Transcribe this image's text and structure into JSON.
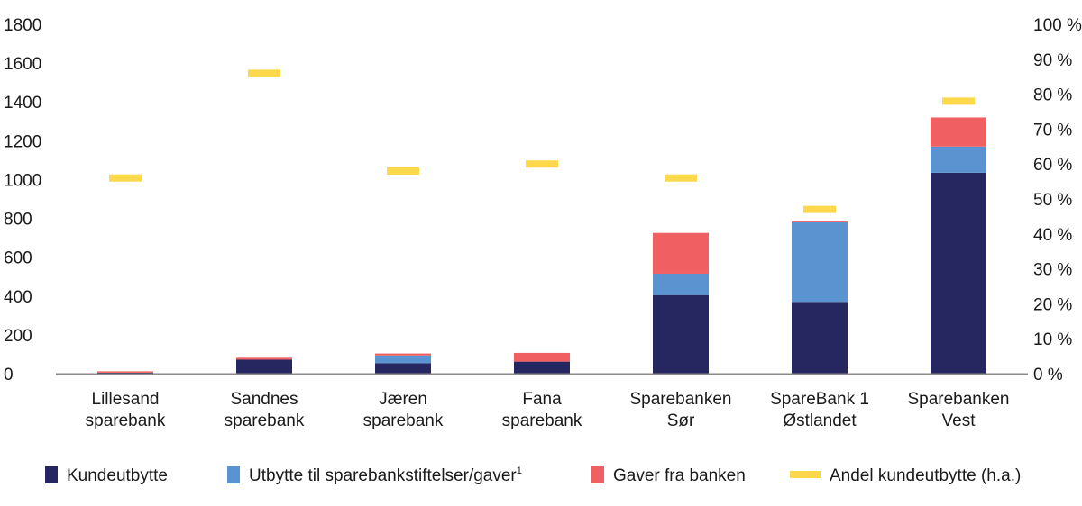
{
  "chart_data": {
    "type": "bar",
    "stacked": true,
    "categories": [
      [
        "Lillesand",
        "sparebank"
      ],
      [
        "Sandnes",
        "sparebank"
      ],
      [
        "Jæren",
        "sparebank"
      ],
      [
        "Fana",
        "sparebank"
      ],
      [
        "Sparebanken",
        "Sør"
      ],
      [
        "SpareBank 1",
        "Østlandet"
      ],
      [
        "Sparebanken",
        "Vest"
      ]
    ],
    "series": [
      {
        "name": "Kundeutbytte",
        "color": "#262660",
        "values": [
          5,
          72,
          54,
          62,
          405,
          370,
          1035
        ]
      },
      {
        "name": "Utbytte til sparebankstiftelser/gaver",
        "name_superscript": "1",
        "color": "#5a93cf",
        "values": [
          0,
          0,
          40,
          0,
          110,
          410,
          135
        ]
      },
      {
        "name": "Gaver fra banken",
        "color": "#f06062",
        "values": [
          7,
          10,
          10,
          45,
          210,
          5,
          150
        ]
      }
    ],
    "line_series": {
      "name": "Andel kundeutbytte (h.a.)",
      "color": "#fcd84a",
      "axis": "right",
      "marker": "dash",
      "values": [
        56,
        86,
        58,
        60,
        56,
        47,
        78
      ]
    },
    "ylim": [
      0,
      1800
    ],
    "yticks": [
      "0",
      "200",
      "400",
      "600",
      "800",
      "1000",
      "1200",
      "1400",
      "1600",
      "1800"
    ],
    "y2lim": [
      0,
      100
    ],
    "y2ticks": [
      "0 %",
      "10 %",
      "20 %",
      "30 %",
      "40 %",
      "50 %",
      "60 %",
      "70 %",
      "80 %",
      "90 %",
      "100 %"
    ],
    "grid": false,
    "legend": "bottom"
  }
}
